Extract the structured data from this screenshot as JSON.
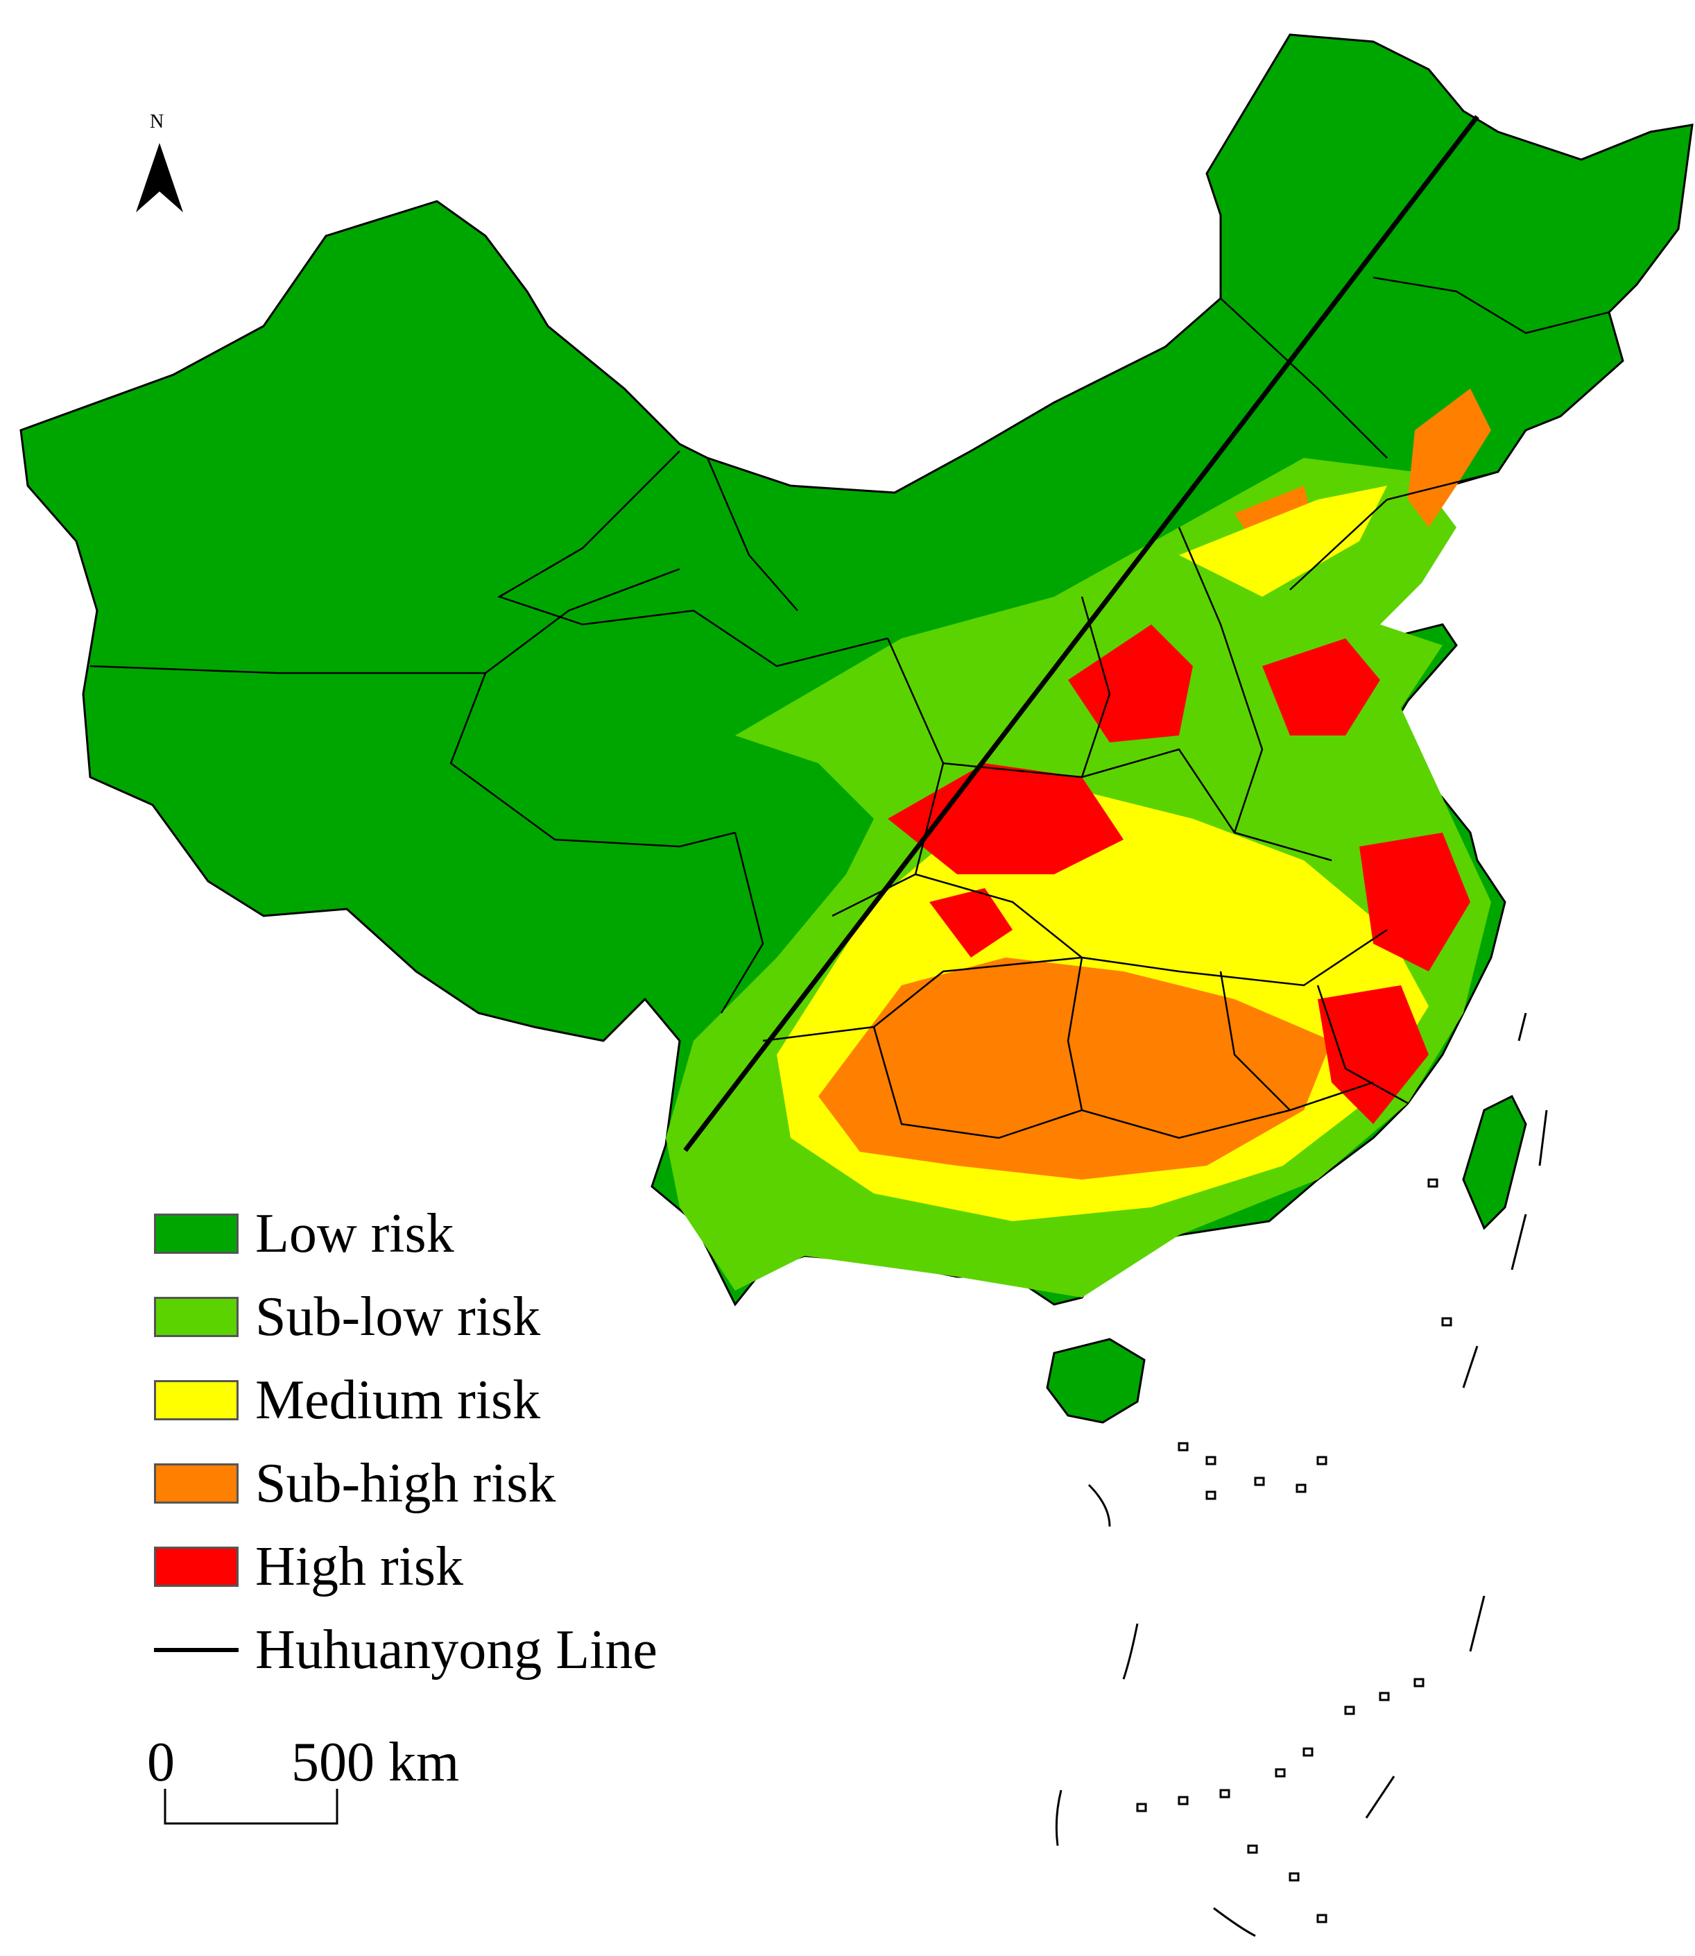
{
  "north_arrow": {
    "letter": "N",
    "icon": "north-arrow-icon"
  },
  "legend": {
    "items": [
      {
        "label": "Low risk",
        "color": "#00a600"
      },
      {
        "label": "Sub-low risk",
        "color": "#5bd300"
      },
      {
        "label": "Medium risk",
        "color": "#ffff00"
      },
      {
        "label": "Sub-high risk",
        "color": "#ff7f00"
      },
      {
        "label": "High risk",
        "color": "#ff0000"
      }
    ],
    "line_label": "Huhuanyong Line",
    "line_color": "#000000"
  },
  "scale_bar": {
    "zero_label": "0",
    "distance_label": "500 km"
  },
  "colors": {
    "low": "#00a600",
    "sub_low": "#5bd300",
    "medium": "#ffff00",
    "sub_high": "#ff7f00",
    "high": "#ff0000",
    "border": "#000000"
  }
}
